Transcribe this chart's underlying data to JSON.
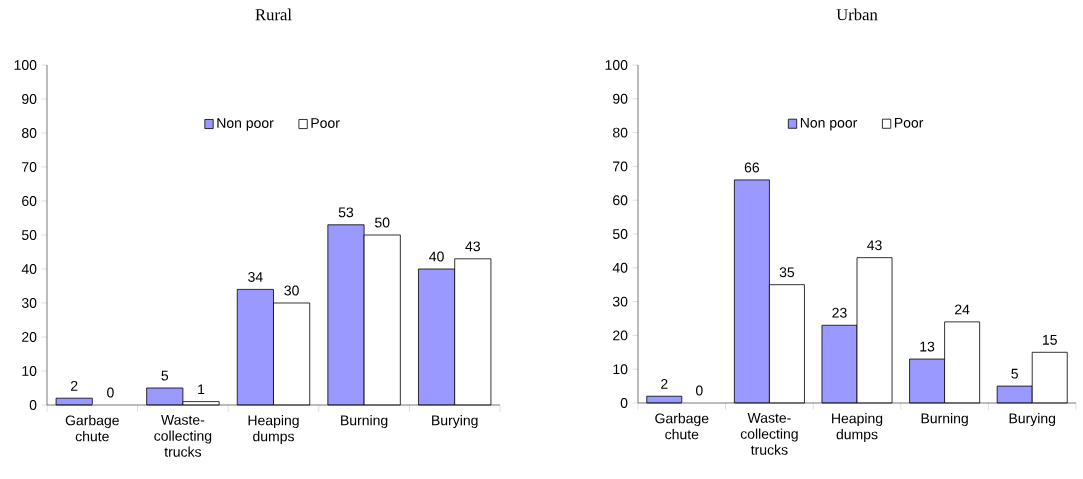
{
  "chart_data": [
    {
      "type": "bar",
      "title": "Rural",
      "categories": [
        "Garbage chute",
        "Waste-collecting trucks",
        "Heaping dumps",
        "Burning",
        "Burying"
      ],
      "series": [
        {
          "name": "Non poor",
          "color": "#9999ff",
          "values": [
            2,
            5,
            34,
            53,
            40
          ]
        },
        {
          "name": "Poor",
          "color": "#ffffff",
          "values": [
            0,
            1,
            30,
            50,
            43
          ]
        }
      ],
      "ylim": [
        0,
        100
      ],
      "yticks": [
        0,
        10,
        20,
        30,
        40,
        50,
        60,
        70,
        80,
        90,
        100
      ],
      "grid": false,
      "legend": "top",
      "data_labels": true
    },
    {
      "type": "bar",
      "title": "Urban",
      "categories": [
        "Garbage chute",
        "Waste-collecting trucks",
        "Heaping dumps",
        "Burning",
        "Burying"
      ],
      "series": [
        {
          "name": "Non poor",
          "color": "#9999ff",
          "values": [
            2,
            66,
            23,
            13,
            5
          ]
        },
        {
          "name": "Poor",
          "color": "#ffffff",
          "values": [
            0,
            35,
            43,
            24,
            15
          ]
        }
      ],
      "ylim": [
        0,
        100
      ],
      "yticks": [
        0,
        10,
        20,
        30,
        40,
        50,
        60,
        70,
        80,
        90,
        100
      ],
      "grid": false,
      "legend": "top",
      "data_labels": true
    }
  ]
}
